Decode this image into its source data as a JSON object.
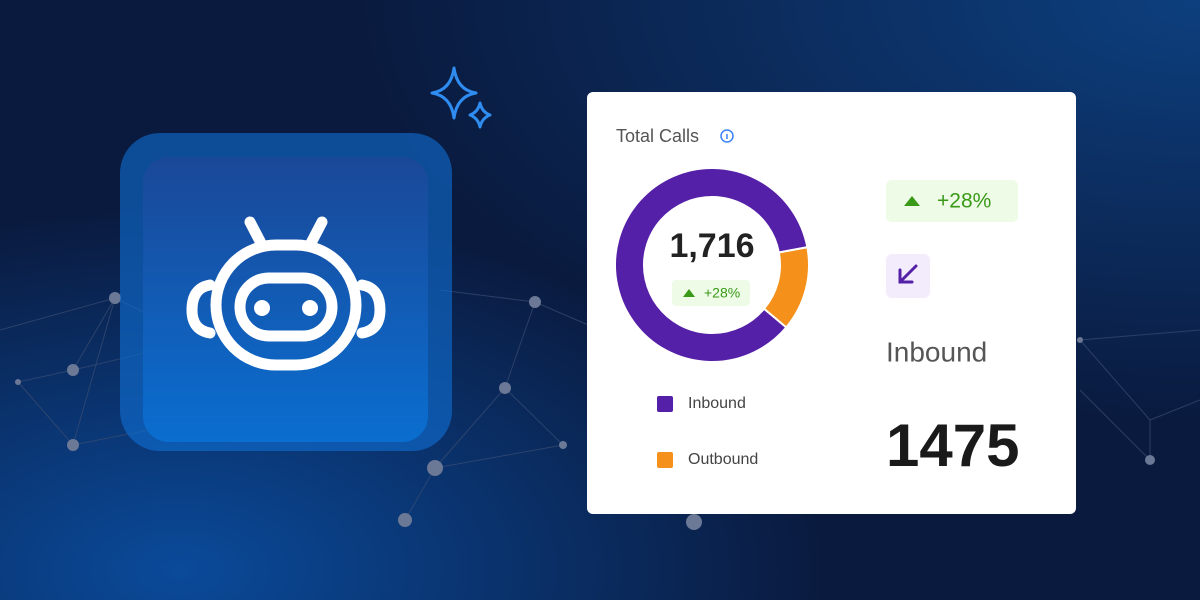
{
  "card": {
    "title": "Total Calls",
    "total": "1,716",
    "change": "+28%"
  },
  "chart_data": {
    "type": "donut",
    "categories": [
      "Inbound",
      "Outbound"
    ],
    "values": [
      1475,
      241
    ],
    "colors": [
      "#5520a8",
      "#f5911a"
    ]
  }
}
